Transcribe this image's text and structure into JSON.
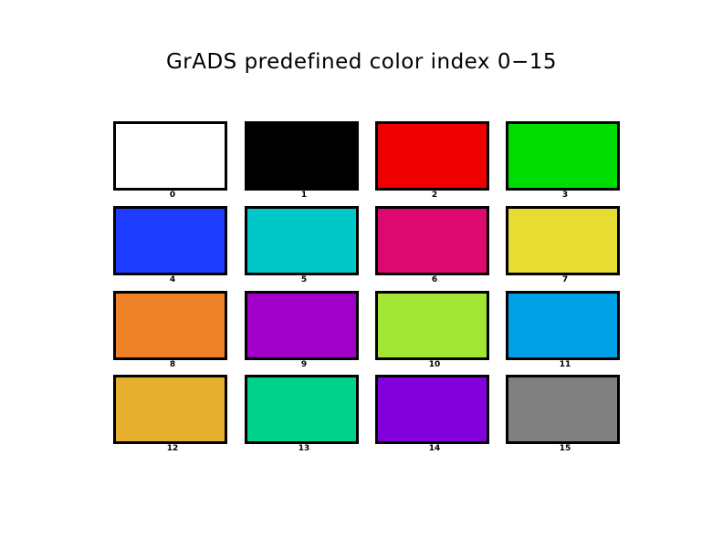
{
  "title": "GrADS predefined color index 0−15",
  "swatches": [
    {
      "label": "0",
      "color": "#ffffff"
    },
    {
      "label": "1",
      "color": "#000000"
    },
    {
      "label": "2",
      "color": "#ee0000"
    },
    {
      "label": "3",
      "color": "#00dc00"
    },
    {
      "label": "4",
      "color": "#1e3cff"
    },
    {
      "label": "5",
      "color": "#00c8c8"
    },
    {
      "label": "6",
      "color": "#dc0a6e"
    },
    {
      "label": "7",
      "color": "#e6dc32"
    },
    {
      "label": "8",
      "color": "#ef8228"
    },
    {
      "label": "9",
      "color": "#a000c8"
    },
    {
      "label": "10",
      "color": "#a0e632"
    },
    {
      "label": "11",
      "color": "#00a0e6"
    },
    {
      "label": "12",
      "color": "#e6af2d"
    },
    {
      "label": "13",
      "color": "#00d28c"
    },
    {
      "label": "14",
      "color": "#8200dc"
    },
    {
      "label": "15",
      "color": "#808080"
    }
  ]
}
